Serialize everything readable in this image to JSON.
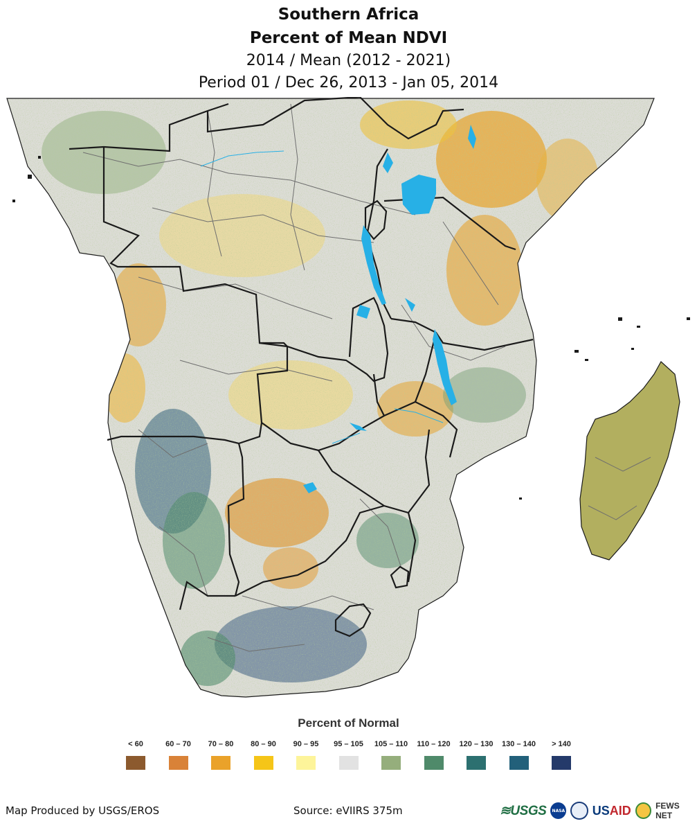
{
  "header": {
    "title_line1": "Southern Africa",
    "title_line2": "Percent of Mean NDVI",
    "subtitle_line1": "2014 / Mean (2012 - 2021)",
    "subtitle_line2": "Period 01 / Dec 26, 2013 - Jan 05, 2014"
  },
  "legend": {
    "title": "Percent of Normal",
    "classes": [
      {
        "label": "< 60",
        "color": "#8c5a2e"
      },
      {
        "label": "60 – 70",
        "color": "#d98238"
      },
      {
        "label": "70 – 80",
        "color": "#eaa22a"
      },
      {
        "label": "80 – 90",
        "color": "#f5c518"
      },
      {
        "label": "90 – 95",
        "color": "#fdf49a"
      },
      {
        "label": "95 – 105",
        "color": "#e2e2e2"
      },
      {
        "label": "105 – 110",
        "color": "#95ae7c"
      },
      {
        "label": "110 – 120",
        "color": "#4f8a6a"
      },
      {
        "label": "120 – 130",
        "color": "#2c7070"
      },
      {
        "label": "130 – 140",
        "color": "#22607a"
      },
      {
        "label": "> 140",
        "color": "#243a6a"
      }
    ]
  },
  "map": {
    "water_color": "#27b0e6",
    "border_color": "#1a1a1a",
    "subborder_color": "#6e6e6e"
  },
  "footer": {
    "produced_by": "Map Produced by USGS/EROS",
    "source": "Source: eVIIRS 375m",
    "logos": {
      "usgs": "≋USGS",
      "nasa": "NASA",
      "usaid_us": "US",
      "usaid_aid": "AID",
      "fews": "FEWS NET"
    }
  }
}
